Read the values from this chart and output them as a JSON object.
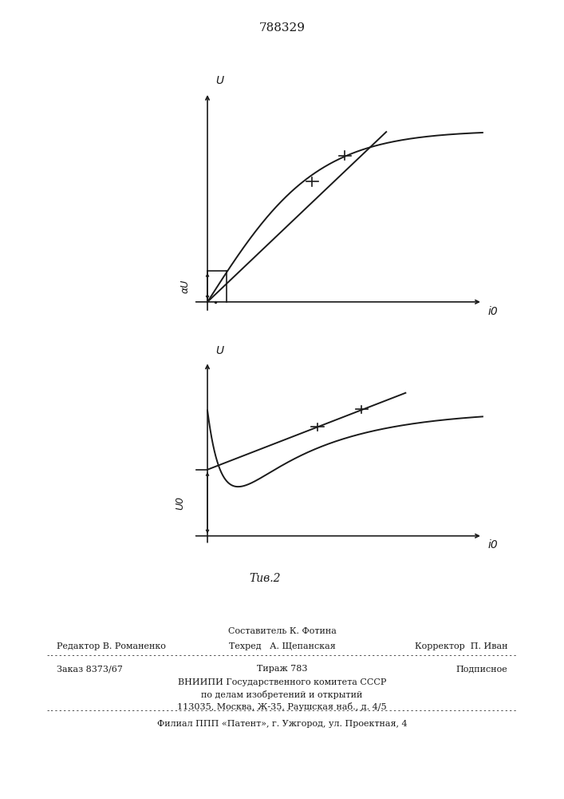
{
  "patent_number": "788329",
  "fig_caption": "Τив.2",
  "background_color": "#ffffff",
  "line_color": "#1a1a1a",
  "fig1": {
    "y_label": "U",
    "x_label": "i0",
    "du_label": "αU"
  },
  "fig2": {
    "y_label": "U",
    "x_label": "i0",
    "u0_label": "U0"
  },
  "footer": {
    "composer": "Составитель К. Фотина",
    "editor": "Редактор В. Романенко",
    "techred": "Техред   А. Щепанская",
    "corrector": "Корректор  П. Иван",
    "order": "Заказ 8373/67",
    "tirazh": "Тираж 783",
    "podpisnoe": "Подписное",
    "vniip1": "ВНИИПИ Государственного комитета СССР",
    "vniip2": "по делам изобретений и открытий",
    "address": "113035, Москва, Ж-35, Раушская наб., д. 4/5",
    "filial": "Филиал ППП «Патент», г. Ужгород, ул. Проектная, 4"
  }
}
